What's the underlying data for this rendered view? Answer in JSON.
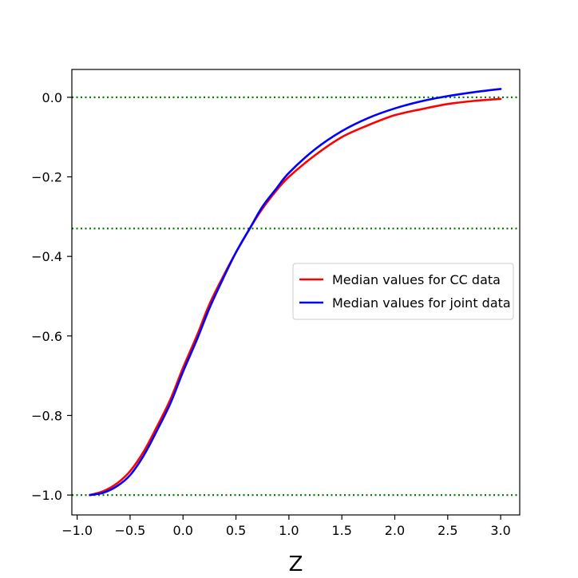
{
  "chart_data": {
    "type": "line",
    "title": "",
    "xlabel": "Z",
    "ylabel": "",
    "xlim": [
      -1.05,
      3.18
    ],
    "ylim": [
      -1.05,
      0.07
    ],
    "xticks": [
      -1.0,
      -0.5,
      0.0,
      0.5,
      1.0,
      1.5,
      2.0,
      2.5,
      3.0
    ],
    "xtick_labels": [
      "−1.0",
      "−0.5",
      "0.0",
      "0.5",
      "1.0",
      "1.5",
      "2.0",
      "2.5",
      "3.0"
    ],
    "yticks": [
      0.0,
      -0.2,
      -0.4,
      -0.6,
      -0.8,
      -1.0
    ],
    "ytick_labels": [
      "0.0",
      "−0.2",
      "−0.4",
      "−0.6",
      "−0.8",
      "−1.0"
    ],
    "grid": false,
    "legend_position": "center-right",
    "reference_lines": [
      {
        "y": 0.0,
        "color": "#008000",
        "style": "dotted"
      },
      {
        "y": -0.33,
        "color": "#008000",
        "style": "dotted"
      },
      {
        "y": -1.0,
        "color": "#008000",
        "style": "dotted"
      }
    ],
    "series": [
      {
        "name": "Median values for CC data",
        "color": "#ff0000",
        "x": [
          -0.88,
          -0.75,
          -0.62,
          -0.5,
          -0.37,
          -0.25,
          -0.12,
          0.0,
          0.13,
          0.25,
          0.38,
          0.5,
          0.63,
          0.75,
          0.88,
          1.0,
          1.25,
          1.5,
          1.75,
          2.0,
          2.25,
          2.5,
          2.75,
          3.0
        ],
        "y": [
          -1.0,
          -0.99,
          -0.97,
          -0.94,
          -0.89,
          -0.83,
          -0.76,
          -0.68,
          -0.6,
          -0.52,
          -0.45,
          -0.39,
          -0.33,
          -0.28,
          -0.235,
          -0.2,
          -0.145,
          -0.1,
          -0.07,
          -0.045,
          -0.03,
          -0.017,
          -0.009,
          -0.004
        ]
      },
      {
        "name": "Median values for joint data",
        "color": "#0000ff",
        "x": [
          -0.88,
          -0.75,
          -0.62,
          -0.5,
          -0.37,
          -0.25,
          -0.12,
          0.0,
          0.13,
          0.25,
          0.38,
          0.5,
          0.63,
          0.75,
          0.88,
          1.0,
          1.25,
          1.5,
          1.75,
          2.0,
          2.25,
          2.5,
          2.75,
          3.0
        ],
        "y": [
          -1.0,
          -0.994,
          -0.977,
          -0.95,
          -0.9,
          -0.84,
          -0.77,
          -0.69,
          -0.61,
          -0.53,
          -0.455,
          -0.39,
          -0.33,
          -0.275,
          -0.23,
          -0.19,
          -0.13,
          -0.085,
          -0.052,
          -0.028,
          -0.01,
          0.003,
          0.013,
          0.021
        ]
      }
    ]
  }
}
